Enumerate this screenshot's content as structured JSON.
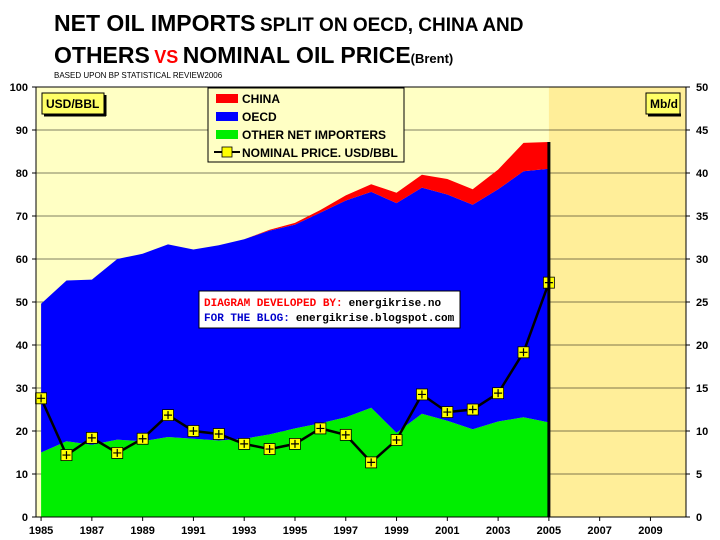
{
  "title": {
    "line1_big": "NET OIL IMPORTS",
    "line1_small": "SPLIT ON OECD, CHINA AND",
    "line2_big": "OTHERS",
    "line2_vs": "VS",
    "line2_rest": "NOMINAL OIL PRICE",
    "line2_sub": "(Brent)",
    "source": "BASED UPON BP STATISTICAL REVIEW2006"
  },
  "unit_left": "USD/BBL",
  "unit_right": "Mb/d",
  "credit": {
    "line1_label": "DIAGRAM DEVELOPED BY:",
    "line1_value": "energikrise.no",
    "line2_label": "FOR THE BLOG:",
    "line2_value": "energikrise.blogspot.com"
  },
  "colors": {
    "plot_bg": "#FFFFC4",
    "china": "#FF0000",
    "oecd": "#0000FF",
    "other": "#00EE00",
    "price_line": "#000000",
    "marker": "#FFFF00"
  },
  "chart_data": {
    "type": "area",
    "x": [
      1985,
      1986,
      1987,
      1988,
      1989,
      1990,
      1991,
      1992,
      1993,
      1994,
      1995,
      1996,
      1997,
      1998,
      1999,
      2000,
      2001,
      2002,
      2003,
      2004,
      2005
    ],
    "xlim": [
      1984.8,
      2010.4
    ],
    "x_ticks": [
      "1985",
      "1987",
      "1989",
      "1991",
      "1993",
      "1995",
      "1997",
      "1999",
      "2001",
      "2003",
      "2005",
      "2007",
      "2009"
    ],
    "left_axis": {
      "ylim": [
        0,
        100
      ],
      "ticks": [
        "0",
        "10",
        "20",
        "30",
        "40",
        "50",
        "60",
        "70",
        "80",
        "90",
        "100"
      ]
    },
    "right_axis": {
      "ylim": [
        0,
        50
      ],
      "ticks": [
        "0",
        "5",
        "10",
        "15",
        "20",
        "25",
        "30",
        "35",
        "40",
        "45",
        "50"
      ]
    },
    "stacked_series_mbd": [
      {
        "name": "OTHER NET IMPORTERS",
        "values": [
          7.5,
          8.8,
          8.4,
          9.0,
          8.8,
          9.3,
          9.1,
          8.9,
          9.1,
          9.6,
          10.3,
          10.9,
          11.6,
          12.7,
          9.8,
          12.0,
          11.2,
          10.2,
          11.1,
          11.6,
          11.0
        ]
      },
      {
        "name": "OECD",
        "values": [
          17.3,
          18.7,
          19.2,
          21.0,
          21.8,
          22.4,
          22.0,
          22.7,
          23.2,
          23.7,
          23.7,
          24.5,
          25.2,
          25.1,
          26.7,
          26.3,
          26.3,
          26.1,
          27.0,
          28.6,
          29.5
        ]
      },
      {
        "name": "CHINA",
        "values": [
          0,
          0,
          0,
          0,
          0,
          0,
          0,
          0,
          0,
          0.1,
          0.2,
          0.3,
          0.6,
          0.9,
          1.2,
          1.5,
          1.8,
          1.8,
          2.3,
          3.3,
          3.1
        ]
      }
    ],
    "price_series": {
      "name": "NOMINAL PRICE. USD/BBL",
      "values": [
        27.6,
        14.4,
        18.4,
        14.9,
        18.2,
        23.7,
        20.0,
        19.3,
        17.0,
        15.8,
        17.0,
        20.6,
        19.1,
        12.7,
        17.9,
        28.5,
        24.4,
        25.0,
        28.8,
        38.3,
        54.5
      ]
    }
  }
}
